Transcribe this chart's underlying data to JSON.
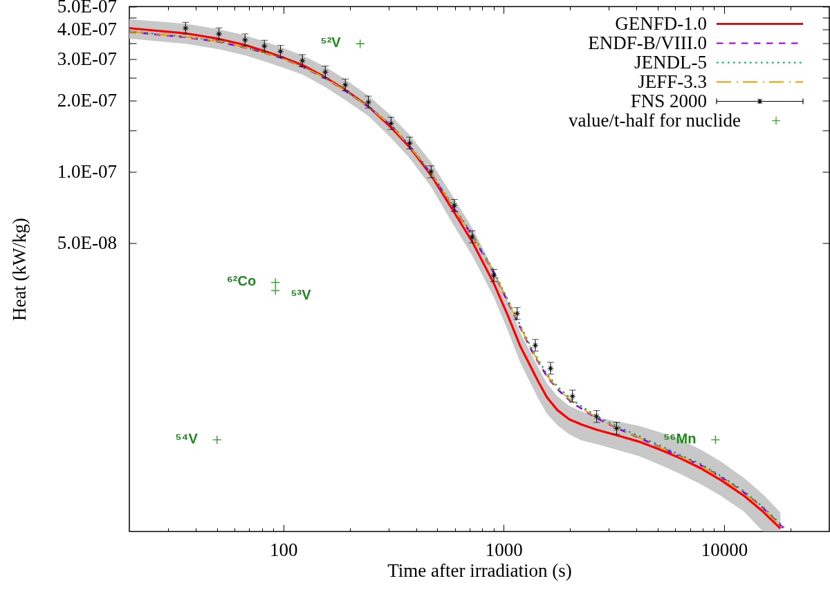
{
  "chart_data": {
    "type": "line",
    "xlabel": "Time after irradiation (s)",
    "ylabel": "Heat (kW/kg)",
    "xlim": [
      20,
      30000
    ],
    "ylim": [
      3e-09,
      5e-07
    ],
    "xticks": [
      {
        "value": 30,
        "label": null
      },
      {
        "value": 40,
        "label": null
      },
      {
        "value": 50,
        "label": null
      },
      {
        "value": 60,
        "label": null
      },
      {
        "value": 70,
        "label": null
      },
      {
        "value": 80,
        "label": null
      },
      {
        "value": 90,
        "label": null
      },
      100,
      {
        "value": 200,
        "label": null
      },
      {
        "value": 300,
        "label": null
      },
      {
        "value": 400,
        "label": null
      },
      {
        "value": 500,
        "label": null
      },
      {
        "value": 600,
        "label": null
      },
      {
        "value": 700,
        "label": null
      },
      {
        "value": 800,
        "label": null
      },
      {
        "value": 900,
        "label": null
      },
      1000,
      {
        "value": 2000,
        "label": null
      },
      {
        "value": 3000,
        "label": null
      },
      {
        "value": 4000,
        "label": null
      },
      {
        "value": 5000,
        "label": null
      },
      {
        "value": 6000,
        "label": null
      },
      {
        "value": 7000,
        "label": null
      },
      {
        "value": 8000,
        "label": null
      },
      {
        "value": 9000,
        "label": null
      },
      10000,
      {
        "value": 20000,
        "label": null
      }
    ],
    "yticks": [
      {
        "value": 5e-08,
        "label": "5.0E-08"
      },
      {
        "value": 1e-07,
        "label": "1.0E-07"
      },
      {
        "value": 1.5e-07,
        "label": null
      },
      {
        "value": 2e-07,
        "label": "2.0E-07"
      },
      {
        "value": 2.5e-07,
        "label": null
      },
      {
        "value": 3e-07,
        "label": "3.0E-07"
      },
      {
        "value": 3.5e-07,
        "label": null
      },
      {
        "value": 4e-07,
        "label": "4.0E-07"
      },
      {
        "value": 4.5e-07,
        "label": null
      },
      {
        "value": 5e-07,
        "label": "5.0E-07"
      }
    ],
    "log": "xy",
    "legend": "top right",
    "series": [
      {
        "name": "GENFD-1.0",
        "color": "#ff0000",
        "line_style": "solid",
        "x": [
          20,
          36,
          51,
          67,
          82,
          97,
          122,
          155,
          191,
          243,
          308,
          374,
          468,
          596,
          719,
          901,
          1040,
          1190,
          1430,
          1570,
          1750,
          1980,
          2250,
          2650,
          3250,
          4110,
          5130,
          6220,
          7790,
          9630,
          12300,
          15000,
          18000
        ],
        "values": [
          4.05e-07,
          3.85e-07,
          3.65e-07,
          3.44e-07,
          3.24e-07,
          3.07e-07,
          2.83e-07,
          2.51e-07,
          2.22e-07,
          1.89e-07,
          1.54e-07,
          1.27e-07,
          9.66e-08,
          6.72e-08,
          5.06e-08,
          3.37e-08,
          2.48e-08,
          1.82e-08,
          1.3e-08,
          1.11e-08,
          9.8e-09,
          8.96e-09,
          8.51e-09,
          8.08e-09,
          7.67e-09,
          7.2e-09,
          6.66e-09,
          6.17e-09,
          5.57e-09,
          4.96e-09,
          4.25e-09,
          3.64e-09,
          3.09e-09
        ],
        "upper": [
          4.42e-07,
          4.23e-07,
          4.01e-07,
          3.78e-07,
          3.56e-07,
          3.37e-07,
          3.11e-07,
          2.78e-07,
          2.46e-07,
          2.1e-07,
          1.73e-07,
          1.43e-07,
          1.1e-07,
          7.69e-08,
          5.79e-08,
          3.85e-08,
          2.84e-08,
          2.08e-08,
          1.49e-08,
          1.27e-08,
          1.12e-08,
          1.02e-08,
          9.67e-09,
          9.12e-09,
          8.77e-09,
          8.4e-09,
          7.88e-09,
          7.4e-09,
          6.68e-09,
          5.95e-09,
          5.06e-09,
          4.31e-09,
          3.61e-09
        ],
        "lower": [
          3.66e-07,
          3.48e-07,
          3.3e-07,
          3.11e-07,
          2.93e-07,
          2.78e-07,
          2.58e-07,
          2.28e-07,
          2.01e-07,
          1.72e-07,
          1.39e-07,
          1.14e-07,
          8.62e-08,
          5.87e-08,
          4.42e-08,
          2.95e-08,
          2.14e-08,
          1.55e-08,
          1.1e-08,
          9.45e-09,
          8.45e-09,
          7.73e-09,
          7.29e-09,
          7.02e-09,
          6.66e-09,
          6.25e-09,
          5.74e-09,
          5.29e-09,
          4.77e-09,
          4.25e-09,
          3.64e-09,
          3e-09,
          3e-09
        ]
      },
      {
        "name": "ENDF-B/VIII.0",
        "color": "#9400d3",
        "line_style": "dashed",
        "x": [
          20,
          36,
          51,
          67,
          82,
          97,
          122,
          155,
          191,
          243,
          308,
          374,
          468,
          596,
          719,
          901,
          1140,
          1350,
          1570,
          1770,
          2050,
          2430,
          2720,
          3310,
          4110,
          5420,
          6220,
          7790,
          9630,
          12300,
          15000,
          18500
        ],
        "values": [
          3.91e-07,
          3.71e-07,
          3.55e-07,
          3.35e-07,
          3.19e-07,
          3.04e-07,
          2.78e-07,
          2.49e-07,
          2.2e-07,
          1.88e-07,
          1.57e-07,
          1.28e-07,
          9.8e-08,
          6.96e-08,
          5.38e-08,
          3.73e-08,
          2.37e-08,
          1.72e-08,
          1.36e-08,
          1.19e-08,
          1.05e-08,
          9.5e-09,
          8.93e-09,
          8.17e-09,
          7.47e-09,
          6.67e-09,
          6.27e-09,
          5.74e-09,
          5.11e-09,
          4.39e-09,
          3.77e-09,
          3.11e-09
        ]
      },
      {
        "name": "JENDL-5",
        "color": "#009e73",
        "line_style": "dotted",
        "x": [
          20,
          36,
          51,
          67,
          82,
          97,
          122,
          155,
          191,
          243,
          308,
          374,
          468,
          596,
          719,
          901,
          1140,
          1350,
          1570,
          1770,
          2050,
          2430,
          2720,
          3310,
          4110,
          5420,
          6220,
          7790,
          9630,
          12300,
          15000,
          18700
        ],
        "values": [
          3.93e-07,
          3.73e-07,
          3.57e-07,
          3.36e-07,
          3.2e-07,
          3.05e-07,
          2.79e-07,
          2.51e-07,
          2.21e-07,
          1.89e-07,
          1.58e-07,
          1.29e-07,
          9.9e-08,
          7.06e-08,
          5.46e-08,
          3.8e-08,
          2.42e-08,
          1.76e-08,
          1.39e-08,
          1.22e-08,
          1.08e-08,
          9.7e-09,
          9.1e-09,
          8.32e-09,
          7.6e-09,
          6.77e-09,
          6.36e-09,
          5.81e-09,
          5.17e-09,
          4.44e-09,
          3.81e-09,
          3.12e-09
        ]
      },
      {
        "name": "JEFF-3.3",
        "color": "#e69f00",
        "line_style": "dashdot",
        "x": [
          20,
          36,
          51,
          67,
          82,
          97,
          122,
          155,
          191,
          243,
          308,
          374,
          468,
          596,
          719,
          901,
          1140,
          1350,
          1570,
          1770,
          2050,
          2430,
          2720,
          3310,
          4110,
          5420,
          6220,
          7790,
          9630,
          12300,
          15000,
          18500
        ],
        "values": [
          3.92e-07,
          3.72e-07,
          3.56e-07,
          3.35e-07,
          3.19e-07,
          3.04e-07,
          2.78e-07,
          2.5e-07,
          2.2e-07,
          1.88e-07,
          1.57e-07,
          1.28e-07,
          9.82e-08,
          6.98e-08,
          5.39e-08,
          3.74e-08,
          2.38e-08,
          1.73e-08,
          1.37e-08,
          1.2e-08,
          1.06e-08,
          9.55e-09,
          8.96e-09,
          8.19e-09,
          7.48e-09,
          6.66e-09,
          6.25e-09,
          5.71e-09,
          5.08e-09,
          4.36e-09,
          3.74e-09,
          3.09e-09
        ]
      },
      {
        "name": "FNS 2000",
        "type": "scatter",
        "color": "#000000",
        "marker": "star",
        "x": [
          36,
          51,
          67,
          82,
          97,
          122,
          155,
          191,
          243,
          308,
          374,
          468,
          596,
          719,
          901,
          1150,
          1390,
          1630,
          2050,
          2640,
          3250
        ],
        "values": [
          4.05e-07,
          3.83e-07,
          3.61e-07,
          3.4e-07,
          3.23e-07,
          2.95e-07,
          2.64e-07,
          2.33e-07,
          1.97e-07,
          1.6e-07,
          1.32e-07,
          1e-07,
          7.2e-08,
          5.3e-08,
          3.64e-08,
          2.51e-08,
          1.84e-08,
          1.47e-08,
          1.12e-08,
          9.2e-09,
          8.2e-09
        ],
        "errors": [
          [
            3.82e-07,
            4.29e-07
          ],
          [
            3.61e-07,
            4.06e-07
          ],
          [
            3.41e-07,
            3.83e-07
          ],
          [
            3.21e-07,
            3.6e-07
          ],
          [
            3.05e-07,
            3.42e-07
          ],
          [
            2.78e-07,
            3.13e-07
          ],
          [
            2.49e-07,
            2.8e-07
          ],
          [
            2.2e-07,
            2.47e-07
          ],
          [
            1.86e-07,
            2.09e-07
          ],
          [
            1.51e-07,
            1.7e-07
          ],
          [
            1.25e-07,
            1.4e-07
          ],
          [
            9.43e-08,
            1.06e-07
          ],
          [
            6.79e-08,
            7.63e-08
          ],
          [
            5e-08,
            5.62e-08
          ],
          [
            3.43e-08,
            3.86e-08
          ],
          [
            2.37e-08,
            2.66e-08
          ],
          [
            1.74e-08,
            1.95e-08
          ],
          [
            1.39e-08,
            1.56e-08
          ],
          [
            1.06e-08,
            1.19e-08
          ],
          [
            8.68e-09,
            9.75e-09
          ],
          [
            7.74e-09,
            8.69e-09
          ]
        ]
      },
      {
        "name": "value/t-half for nuclide",
        "type": "scatter",
        "color": "#2e9a2e",
        "marker": "cross",
        "x": [
          223,
          92,
          92,
          50,
          9130
        ],
        "values": [
          3.48e-07,
          3.4e-08,
          3.14e-08,
          7.33e-09,
          7.33e-09
        ]
      }
    ],
    "annotations": [
      {
        "text": "⁵²V",
        "x": 223,
        "y": 3.48e-07
      },
      {
        "text": "⁶²Co",
        "x": 92,
        "y": 3.4e-08
      },
      {
        "text": "⁵³V",
        "x": 92,
        "y": 3.14e-08
      },
      {
        "text": "⁵⁴V",
        "x": 50,
        "y": 7.33e-09
      },
      {
        "text": "⁵⁶Mn",
        "x": 9130,
        "y": 7.33e-09
      }
    ]
  }
}
